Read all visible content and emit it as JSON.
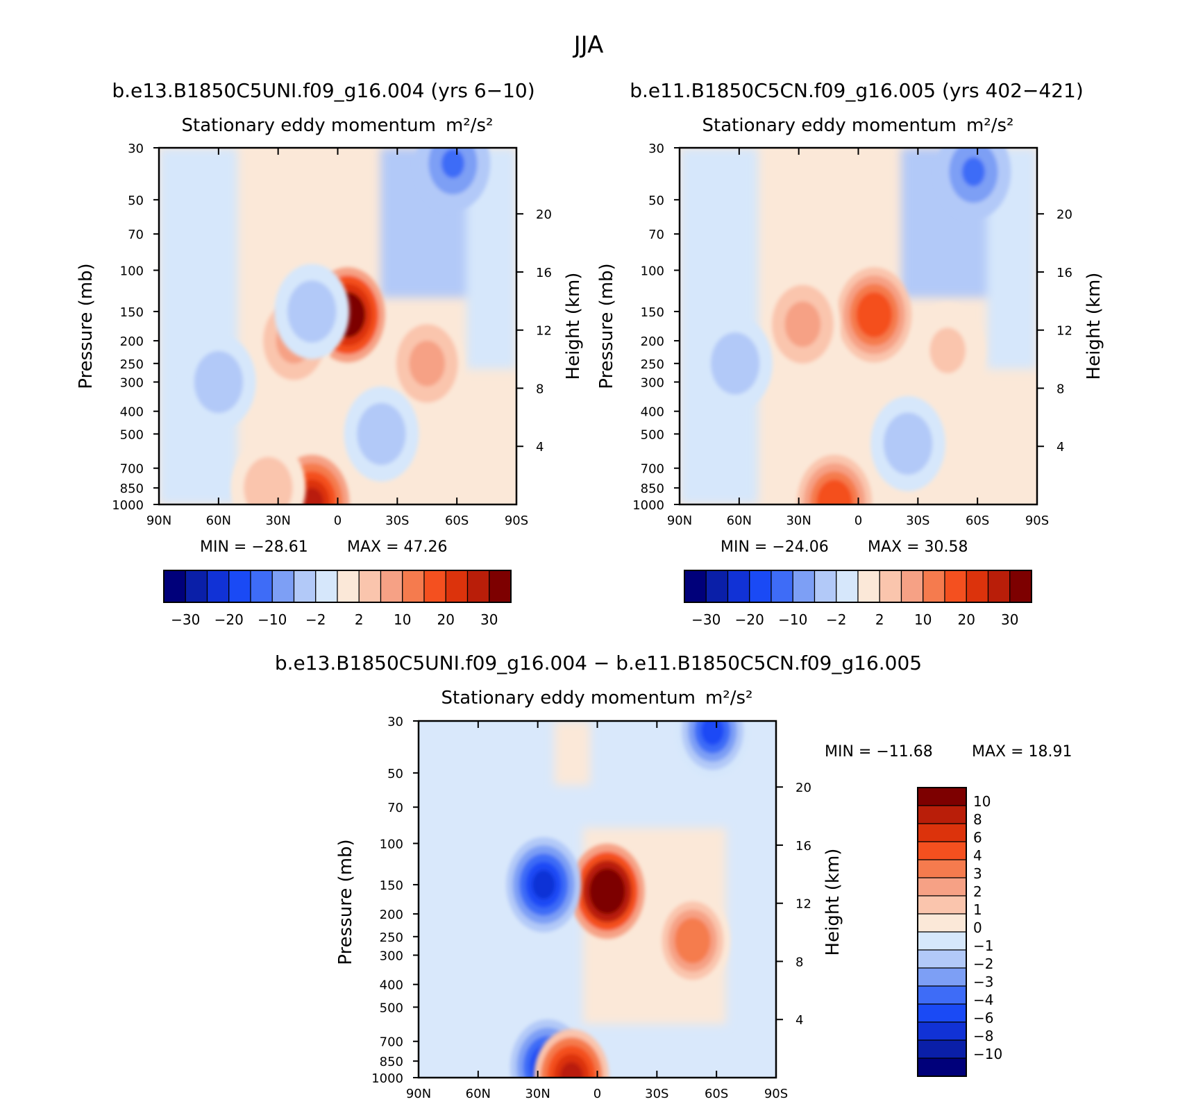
{
  "page": {
    "title": "JJA"
  },
  "panel_titles": {
    "a": "b.e13.B1850C5UNI.f09_g16.004 (yrs 6−10)",
    "b": "b.e11.B1850C5CN.f09_g16.005 (yrs 402−421)",
    "c": "b.e13.B1850C5UNI.f09_g16.004 − b.e11.B1850C5CN.f09_g16.005"
  },
  "colors": {
    "full_palette": [
      "#00007a",
      "#0a1fa8",
      "#1132d6",
      "#1a4af5",
      "#3e6cf7",
      "#7d9ff5",
      "#b2c9f8",
      "#d6e7fb",
      "#fbe8d8",
      "#fac5ad",
      "#f6a185",
      "#f57b4e",
      "#f4501f",
      "#dc330c",
      "#b91e09",
      "#7d0000"
    ],
    "diff_palette": [
      "#00007a",
      "#0a1fa8",
      "#1132d6",
      "#1a4af5",
      "#3e6cf7",
      "#7d9ff5",
      "#b2c9f8",
      "#d6e7fb",
      "#fbe8d8",
      "#fac5ad",
      "#f6a185",
      "#f57b4e",
      "#f4501f",
      "#dc330c",
      "#b91e09",
      "#7d0000"
    ]
  },
  "chart_data": [
    {
      "id": "a",
      "type": "heatmap",
      "title": "Stationary eddy momentum",
      "units": "m²/s²",
      "xlabel": "",
      "ylabel": "Pressure (mb)",
      "ylabel_right": "Height (km)",
      "x_ticks": [
        "90N",
        "60N",
        "30N",
        "0",
        "30S",
        "60S",
        "90S"
      ],
      "y_ticks": [
        "30",
        "50",
        "70",
        "100",
        "150",
        "200",
        "250",
        "300",
        "400",
        "500",
        "700",
        "850",
        "1000"
      ],
      "y_ticks_right": [
        "20",
        "16",
        "12",
        "8",
        "4"
      ],
      "min_label": "MIN = −28.61",
      "max_label": "MAX =   47.26",
      "min": -28.61,
      "max": 47.26,
      "colorbar_labels": [
        "−30",
        "−20",
        "−10",
        "−2",
        "2",
        "10",
        "20",
        "30"
      ],
      "features": [
        {
          "lat": -5,
          "p": 155,
          "value": 40
        },
        {
          "lat": 22,
          "p": 200,
          "value": 8
        },
        {
          "lat": 13,
          "p": 150,
          "value": -4
        },
        {
          "lat": -45,
          "p": 250,
          "value": 7
        },
        {
          "lat": 60,
          "p": 300,
          "value": -4
        },
        {
          "lat": -58,
          "p": 35,
          "value": -12
        },
        {
          "lat": -22,
          "p": 500,
          "value": -4
        },
        {
          "lat": 13,
          "p": 980,
          "value": 30
        },
        {
          "lat": 35,
          "p": 850,
          "value": 4
        }
      ]
    },
    {
      "id": "b",
      "type": "heatmap",
      "title": "Stationary eddy momentum",
      "units": "m²/s²",
      "xlabel": "",
      "ylabel": "Pressure (mb)",
      "ylabel_right": "Height (km)",
      "x_ticks": [
        "90N",
        "60N",
        "30N",
        "0",
        "30S",
        "60S",
        "90S"
      ],
      "y_ticks": [
        "30",
        "50",
        "70",
        "100",
        "150",
        "200",
        "250",
        "300",
        "400",
        "500",
        "700",
        "850",
        "1000"
      ],
      "y_ticks_right": [
        "20",
        "16",
        "12",
        "8",
        "4"
      ],
      "min_label": "MIN = −24.06",
      "max_label": "MAX =   30.58",
      "min": -24.06,
      "max": 30.58,
      "colorbar_labels": [
        "−30",
        "−20",
        "−10",
        "−2",
        "2",
        "10",
        "20",
        "30"
      ],
      "features": [
        {
          "lat": -8,
          "p": 155,
          "value": 20
        },
        {
          "lat": 28,
          "p": 170,
          "value": 8
        },
        {
          "lat": 62,
          "p": 250,
          "value": -4
        },
        {
          "lat": -45,
          "p": 220,
          "value": 3
        },
        {
          "lat": -58,
          "p": 38,
          "value": -10
        },
        {
          "lat": -25,
          "p": 550,
          "value": -4
        },
        {
          "lat": 12,
          "p": 980,
          "value": 20
        }
      ]
    },
    {
      "id": "c",
      "type": "heatmap",
      "title": "Stationary eddy momentum",
      "units": "m²/s²",
      "xlabel": "",
      "ylabel": "Pressure (mb)",
      "ylabel_right": "Height (km)",
      "x_ticks": [
        "90N",
        "60N",
        "30N",
        "0",
        "30S",
        "60S",
        "90S"
      ],
      "y_ticks": [
        "30",
        "50",
        "70",
        "100",
        "150",
        "200",
        "250",
        "300",
        "400",
        "500",
        "700",
        "850",
        "1000"
      ],
      "y_ticks_right": [
        "20",
        "16",
        "12",
        "8",
        "4"
      ],
      "min_label": "MIN = −11.68",
      "max_label": "MAX =   18.91",
      "min": -11.68,
      "max": 18.91,
      "colorbar_labels": [
        "10",
        "8",
        "6",
        "4",
        "3",
        "2",
        "1",
        "0",
        "−1",
        "−2",
        "−3",
        "−4",
        "−6",
        "−8",
        "−10"
      ],
      "features": [
        {
          "lat": -5,
          "p": 160,
          "value": 14
        },
        {
          "lat": 27,
          "p": 150,
          "value": -6
        },
        {
          "lat": -48,
          "p": 260,
          "value": 4
        },
        {
          "lat": -58,
          "p": 33,
          "value": -4
        },
        {
          "lat": 25,
          "p": 900,
          "value": -5
        },
        {
          "lat": 13,
          "p": 990,
          "value": 9
        }
      ]
    }
  ]
}
